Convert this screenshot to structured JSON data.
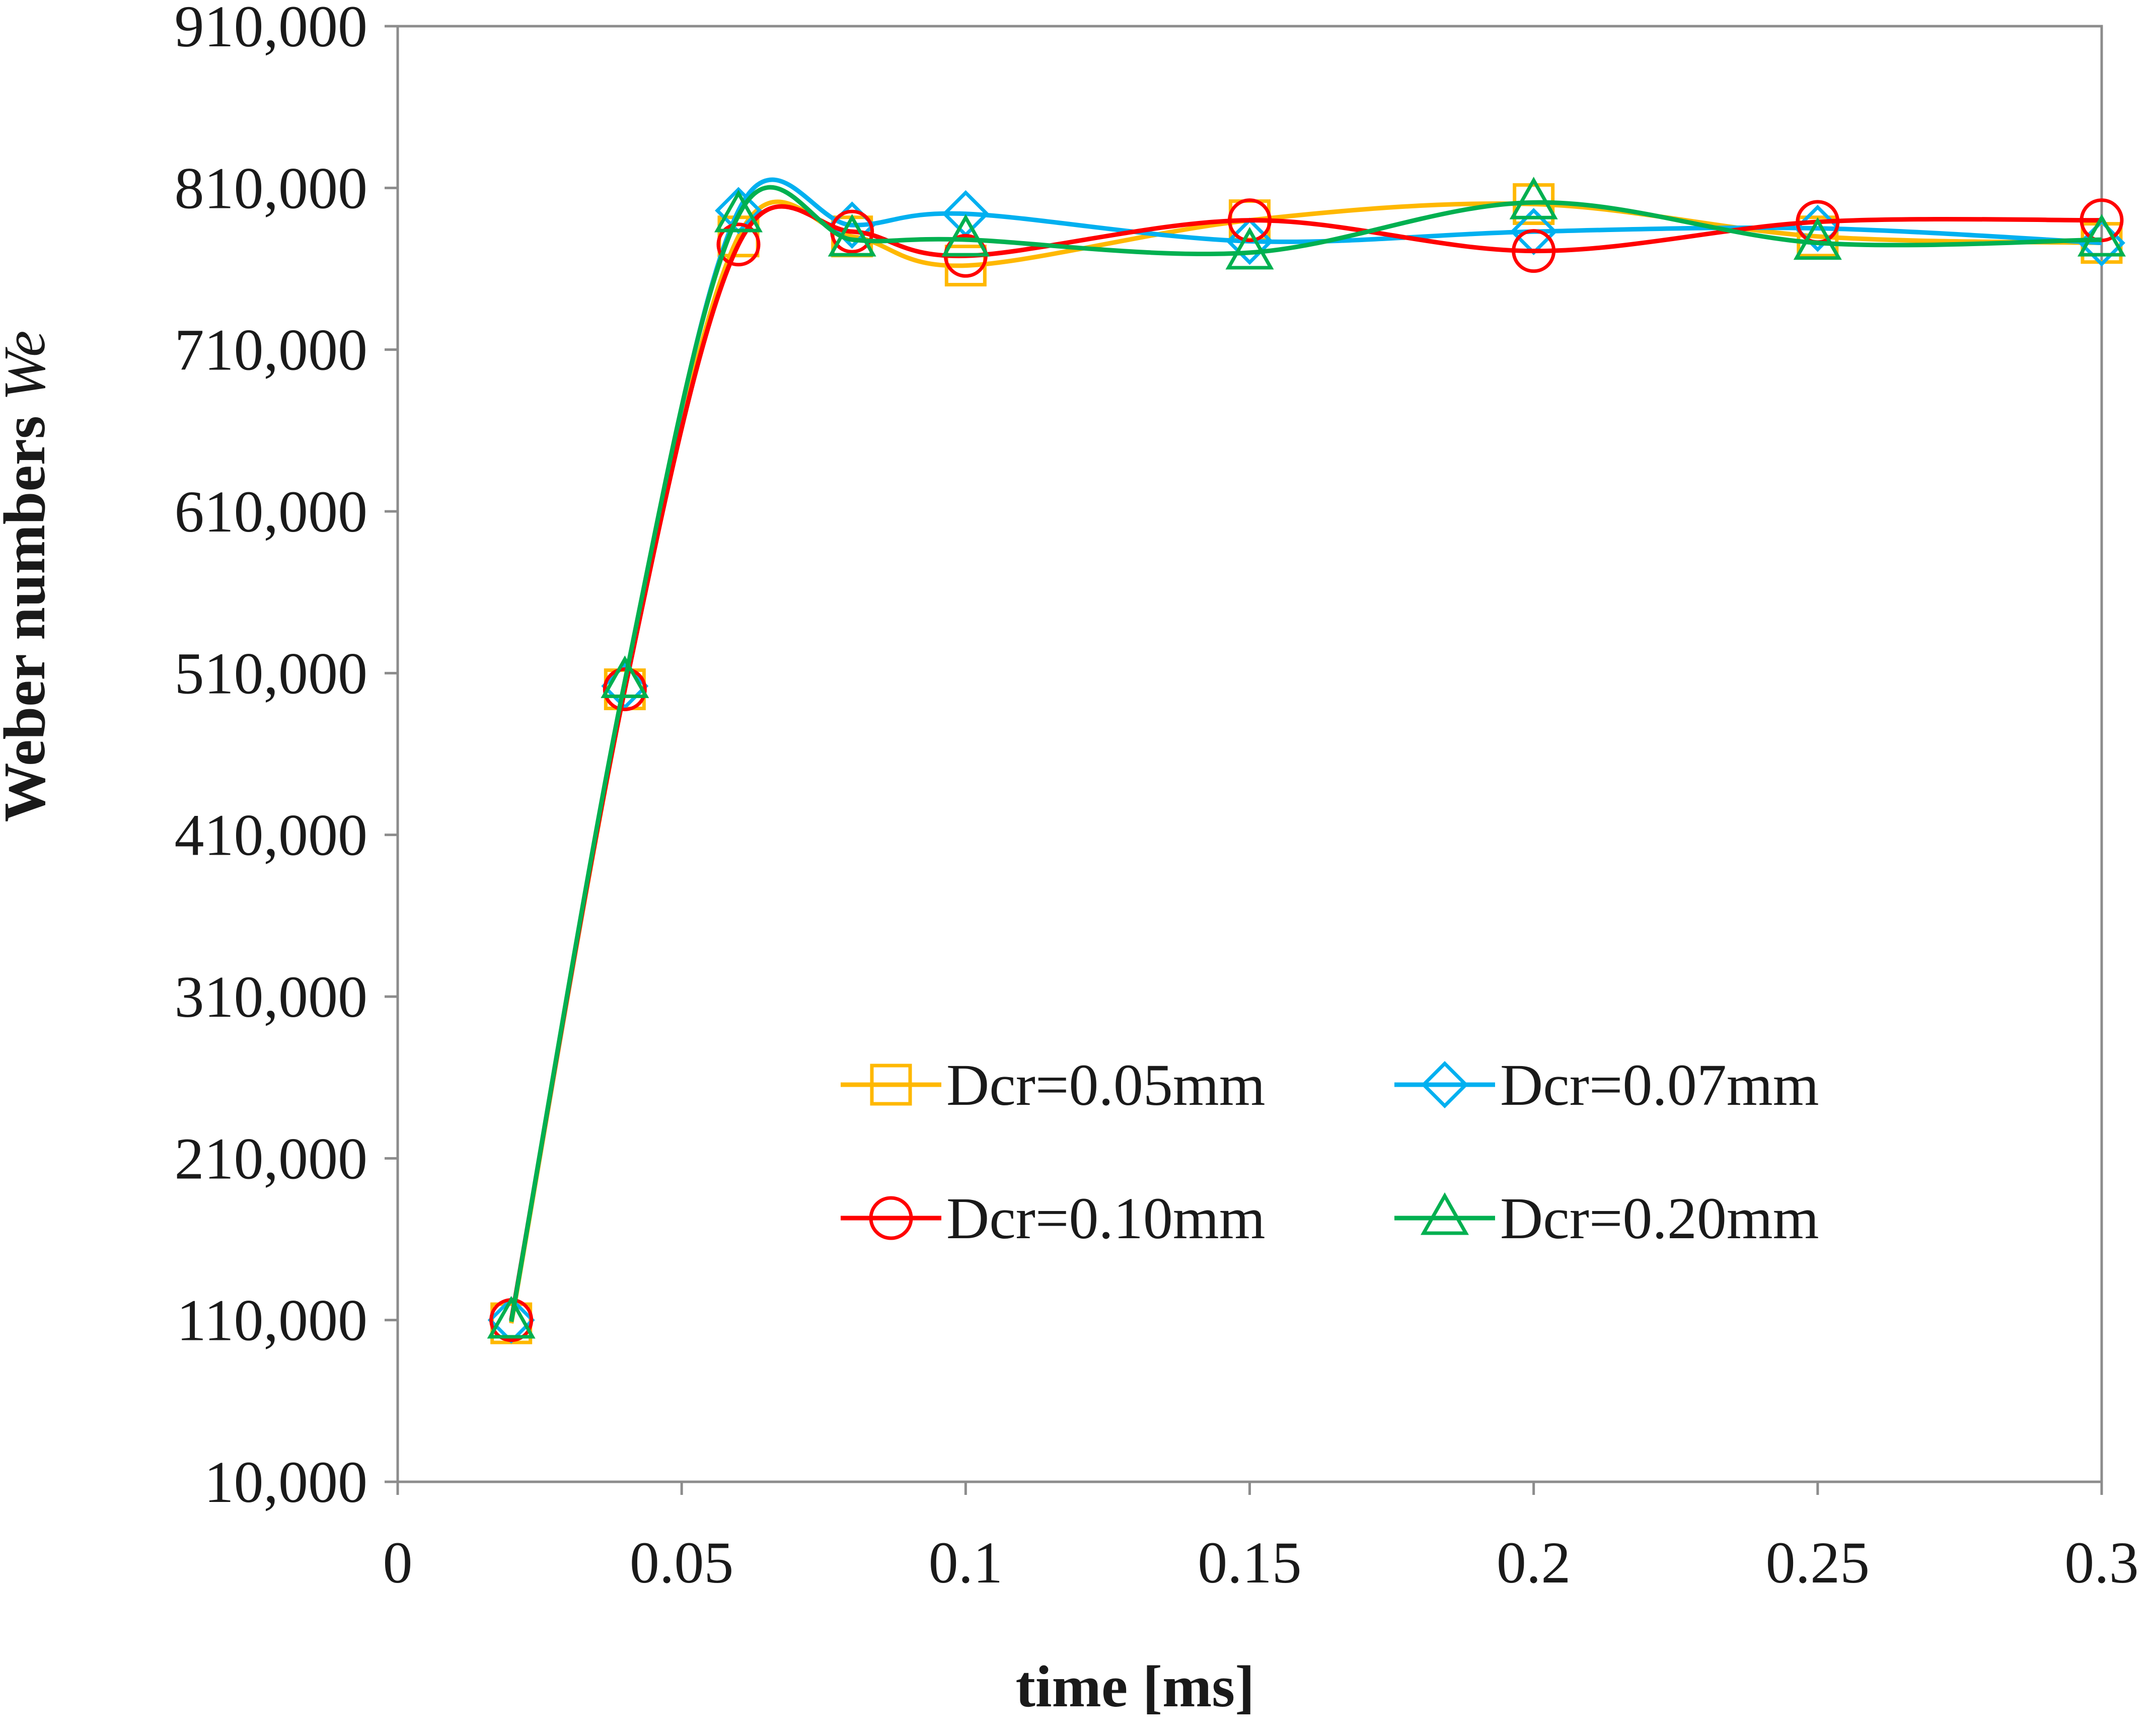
{
  "chart_data": {
    "type": "line",
    "title": "",
    "xlabel": "time [ms]",
    "ylabel": "Weber numbers ",
    "ylabel_italic": "We",
    "xlim": [
      0,
      0.3
    ],
    "ylim": [
      10000,
      910000
    ],
    "xticks": [
      0,
      0.05,
      0.1,
      0.15,
      0.2,
      0.25,
      0.3
    ],
    "xtick_labels": [
      "0",
      "0.05",
      "0.1",
      "0.15",
      "0.2",
      "0.25",
      "0.3"
    ],
    "yticks": [
      10000,
      110000,
      210000,
      310000,
      410000,
      510000,
      610000,
      710000,
      810000,
      910000
    ],
    "ytick_labels": [
      "10,000",
      "110,000",
      "210,000",
      "310,000",
      "410,000",
      "510,000",
      "610,000",
      "710,000",
      "810,000",
      "910,000"
    ],
    "grid": false,
    "legend_position": "lower-right",
    "x": [
      0.02,
      0.04,
      0.06,
      0.08,
      0.1,
      0.15,
      0.2,
      0.25,
      0.3
    ],
    "series": [
      {
        "name": "Dcr=0.05mm",
        "color": "#FFB800",
        "marker": "square",
        "values": [
          108000,
          500000,
          780000,
          780000,
          762000,
          790000,
          800000,
          780000,
          776000
        ]
      },
      {
        "name": "Dcr=0.07mm",
        "color": "#00B0F0",
        "marker": "diamond",
        "values": [
          110000,
          502000,
          796000,
          787000,
          794000,
          777000,
          783000,
          785000,
          776000
        ]
      },
      {
        "name": "Dcr=0.10mm",
        "color": "#FF0000",
        "marker": "circle",
        "values": [
          110000,
          500000,
          775000,
          783000,
          768000,
          790000,
          771000,
          789000,
          790000
        ]
      },
      {
        "name": "Dcr=0.20mm",
        "color": "#00B050",
        "marker": "triangle",
        "values": [
          109000,
          505000,
          793000,
          778000,
          778000,
          770000,
          801000,
          776000,
          778000
        ]
      }
    ]
  }
}
